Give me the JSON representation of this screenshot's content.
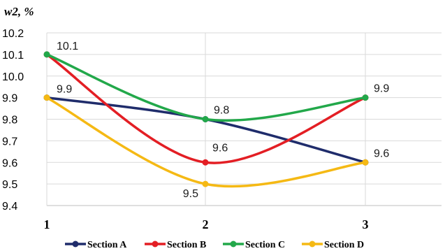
{
  "chart_data": {
    "type": "line",
    "title": "",
    "ylabel": "w2, %",
    "xlabel": "",
    "categories": [
      "1",
      "2",
      "3"
    ],
    "ylim": [
      9.4,
      10.2
    ],
    "yticks": [
      "9.4",
      "9.5",
      "9.6",
      "9.7",
      "9.8",
      "9.9",
      "10.0",
      "10.1",
      "10.2"
    ],
    "grid": true,
    "smooth": true,
    "legend_position": "bottom",
    "series": [
      {
        "name": "Section A",
        "values": [
          9.9,
          9.8,
          9.6
        ],
        "color": "#1f2c6b"
      },
      {
        "name": "Section B",
        "values": [
          10.1,
          9.6,
          9.9
        ],
        "color": "#e31e24"
      },
      {
        "name": "Section C",
        "values": [
          10.1,
          9.8,
          9.9
        ],
        "color": "#22a84a"
      },
      {
        "name": "Section D",
        "values": [
          9.9,
          9.5,
          9.6
        ],
        "color": "#f5b914"
      }
    ],
    "data_labels": [
      {
        "text": "10.1",
        "x": "1",
        "y": 10.1
      },
      {
        "text": "9.9",
        "x": "1",
        "y": 9.9
      },
      {
        "text": "9.8",
        "x": "2",
        "y": 9.8
      },
      {
        "text": "9.6",
        "x": "2",
        "y": 9.6
      },
      {
        "text": "9.5",
        "x": "2",
        "y": 9.5
      },
      {
        "text": "9.9",
        "x": "3",
        "y": 9.9
      },
      {
        "text": "9.6",
        "x": "3",
        "y": 9.6
      }
    ]
  }
}
